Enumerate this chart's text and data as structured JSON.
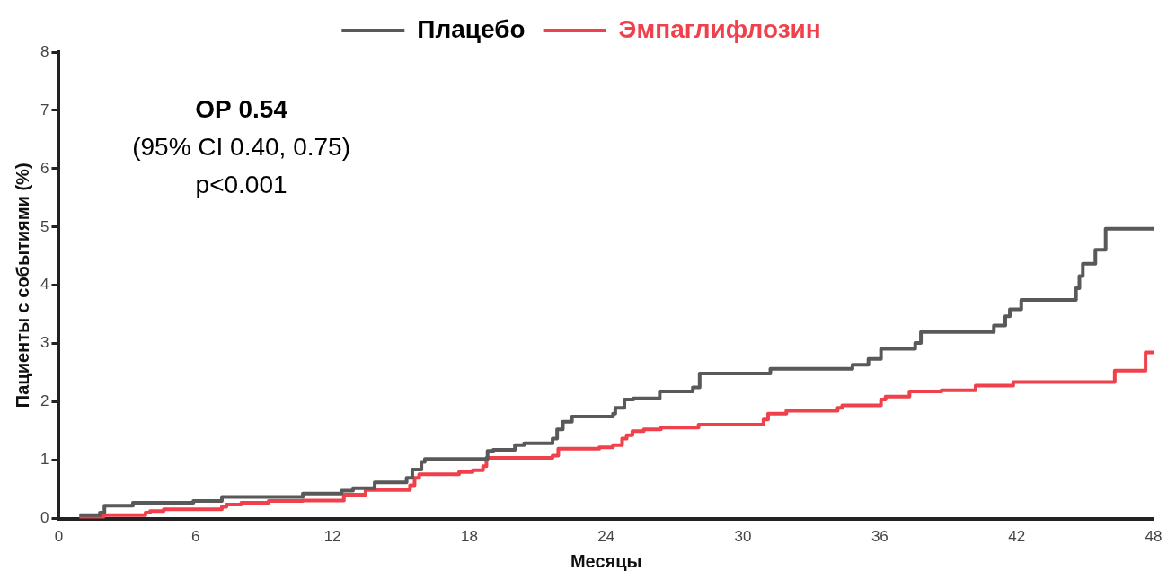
{
  "chart_data": {
    "type": "step",
    "xlabel": "Месяцы",
    "ylabel": "Пациенты с событиями (%)",
    "xlim": [
      0,
      48
    ],
    "xticks": [
      0,
      6,
      12,
      18,
      24,
      30,
      36,
      42,
      48
    ],
    "ylim": [
      0,
      8
    ],
    "yticks": [
      0,
      1,
      2,
      3,
      4,
      5,
      6,
      7,
      8
    ],
    "grid": false,
    "legend": "top",
    "marker": "none",
    "line_style": "solid",
    "annotations": [
      "ОР 0.54",
      "(95% CI 0.40, 0.75)",
      "p<0.001"
    ],
    "series": [
      {
        "name": "Плацебо",
        "color": "#595959",
        "x": [
          0.9,
          1.8,
          2.0,
          3.25,
          5.9,
          7.15,
          10.7,
          12.4,
          12.9,
          13.85,
          15.25,
          15.5,
          15.9,
          16.05,
          18.8,
          19.05,
          20.0,
          20.4,
          21.65,
          21.85,
          22.1,
          22.5,
          24.3,
          24.4,
          24.8,
          25.2,
          26.35,
          27.8,
          28.1,
          31.2,
          34.8,
          35.5,
          36.05,
          37.55,
          37.8,
          41.0,
          41.5,
          41.7,
          42.2,
          44.6,
          44.75,
          44.9,
          45.45,
          45.9,
          48
        ],
        "values": [
          0.06,
          0.1,
          0.22,
          0.27,
          0.3,
          0.37,
          0.43,
          0.48,
          0.52,
          0.62,
          0.7,
          0.84,
          0.97,
          1.02,
          1.16,
          1.18,
          1.26,
          1.29,
          1.37,
          1.53,
          1.66,
          1.75,
          1.8,
          1.9,
          2.04,
          2.06,
          2.18,
          2.25,
          2.49,
          2.57,
          2.64,
          2.74,
          2.91,
          3.01,
          3.2,
          3.31,
          3.47,
          3.59,
          3.75,
          3.95,
          4.16,
          4.37,
          4.61,
          4.97,
          4.97
        ]
      },
      {
        "name": "Эмпаглифлозин",
        "color": "#f0404c",
        "x": [
          0.9,
          1.95,
          3.8,
          4.0,
          4.6,
          7.15,
          7.35,
          8.0,
          9.2,
          10.7,
          12.5,
          13.45,
          15.4,
          15.6,
          15.8,
          17.55,
          18.15,
          18.6,
          18.75,
          21.65,
          21.9,
          23.7,
          24.3,
          24.7,
          24.9,
          25.15,
          25.65,
          26.4,
          28.05,
          30.9,
          31.1,
          31.9,
          34.15,
          34.35,
          36.05,
          36.25,
          37.3,
          38.7,
          40.2,
          41.85,
          46.3,
          47.65,
          48
        ],
        "values": [
          0.02,
          0.06,
          0.1,
          0.13,
          0.16,
          0.2,
          0.24,
          0.27,
          0.3,
          0.31,
          0.41,
          0.49,
          0.57,
          0.7,
          0.76,
          0.8,
          0.83,
          0.9,
          1.04,
          1.08,
          1.2,
          1.22,
          1.26,
          1.37,
          1.43,
          1.5,
          1.53,
          1.56,
          1.61,
          1.7,
          1.8,
          1.85,
          1.9,
          1.94,
          2.04,
          2.09,
          2.18,
          2.2,
          2.28,
          2.34,
          2.54,
          2.85,
          2.85
        ]
      }
    ]
  }
}
